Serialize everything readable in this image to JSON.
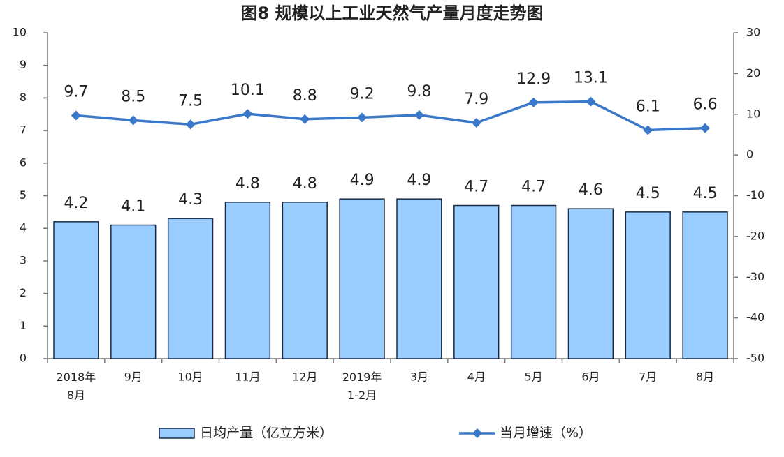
{
  "chart_data": {
    "type": "bar-line",
    "title": "图8 规模以上工业天然气产量月度走势图",
    "categories": [
      "2018年\n8月",
      "9月",
      "10月",
      "11月",
      "12月",
      "2019年\n1-2月",
      "3月",
      "4月",
      "5月",
      "6月",
      "7月",
      "8月"
    ],
    "series": [
      {
        "name": "日均产量（亿立方米）",
        "type": "bar",
        "color": "#99ccff",
        "values": [
          4.2,
          4.1,
          4.3,
          4.8,
          4.8,
          4.9,
          4.9,
          4.7,
          4.7,
          4.6,
          4.5,
          4.5
        ]
      },
      {
        "name": "当月增速（%）",
        "type": "line",
        "axis": "y2",
        "color": "#3a78c9",
        "values": [
          9.7,
          8.5,
          7.5,
          10.1,
          8.8,
          9.2,
          9.8,
          7.9,
          12.9,
          13.1,
          6.1,
          6.6
        ]
      }
    ],
    "ylim": [
      0,
      10
    ],
    "yticks": [
      0,
      1,
      2,
      3,
      4,
      5,
      6,
      7,
      8,
      9,
      10
    ],
    "y2lim": [
      -50,
      30
    ],
    "y2ticks": [
      -50,
      -40,
      -30,
      -20,
      -10,
      0,
      10,
      20,
      30
    ],
    "grid": false,
    "legend": "bottom"
  }
}
